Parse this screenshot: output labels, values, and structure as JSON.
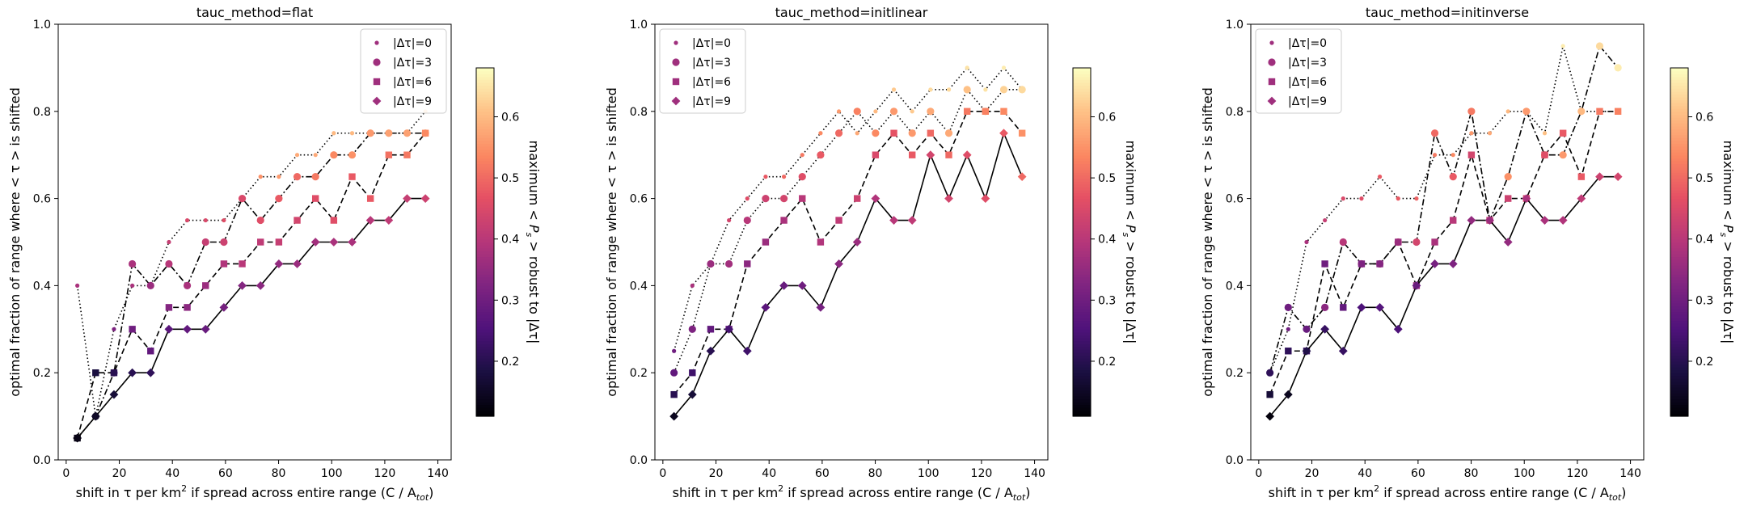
{
  "chart_data": [
    {
      "type": "scatter",
      "title": "tauc_method=flat",
      "ylabel": "optimal fraction of range where < τ > is shifted",
      "xlabel_parts": [
        "shift in τ per km",
        "2",
        " if spread across entire range (C / A",
        "tot",
        ")"
      ],
      "xlim": [
        -3,
        145
      ],
      "ylim": [
        0,
        1.0
      ],
      "xticks": [
        0,
        20,
        40,
        60,
        80,
        100,
        120,
        140
      ],
      "yticks": [
        0.0,
        0.2,
        0.4,
        0.6,
        0.8,
        1.0
      ],
      "legend_position": "upper right",
      "colorbar": {
        "label": "maximum < P_s > robust to |Δτ|",
        "label_parts": [
          "maximum <",
          "P",
          "s",
          "> robust to |Δτ|"
        ],
        "range": [
          0.11,
          0.68
        ],
        "ticks": [
          0.2,
          0.3,
          0.4,
          0.5,
          0.6
        ],
        "colormap": "magma"
      },
      "x": [
        4.2,
        11.1,
        18.0,
        24.9,
        31.8,
        38.7,
        45.6,
        52.5,
        59.4,
        66.3,
        73.2,
        80.1,
        87.0,
        93.9,
        100.8,
        107.7,
        114.6,
        121.5,
        128.4,
        135.3
      ],
      "series": [
        {
          "name": "|Δτ|=0",
          "marker": "point",
          "linestyle": "dotted",
          "y": [
            0.4,
            0.1,
            0.3,
            0.4,
            0.4,
            0.5,
            0.55,
            0.55,
            0.55,
            0.6,
            0.65,
            0.65,
            0.7,
            0.7,
            0.75,
            0.75,
            0.75,
            0.75,
            0.75,
            0.8
          ],
          "c": [
            0.38,
            0.22,
            0.32,
            0.38,
            0.4,
            0.42,
            0.45,
            0.45,
            0.46,
            0.52,
            0.55,
            0.56,
            0.58,
            0.58,
            0.6,
            0.6,
            0.61,
            0.61,
            0.62,
            0.62
          ]
        },
        {
          "name": "|Δτ|=3",
          "marker": "circle",
          "linestyle": "dashdot",
          "y": [
            0.05,
            0.1,
            0.2,
            0.45,
            0.4,
            0.45,
            0.4,
            0.5,
            0.5,
            0.6,
            0.55,
            0.6,
            0.65,
            0.65,
            0.7,
            0.7,
            0.75,
            0.75,
            0.75,
            0.75
          ],
          "c": [
            0.13,
            0.15,
            0.25,
            0.38,
            0.36,
            0.4,
            0.38,
            0.42,
            0.43,
            0.45,
            0.46,
            0.48,
            0.5,
            0.52,
            0.54,
            0.55,
            0.56,
            0.57,
            0.57,
            0.58
          ]
        },
        {
          "name": "|Δτ|=6",
          "marker": "square",
          "linestyle": "dashed",
          "y": [
            0.05,
            0.2,
            0.2,
            0.3,
            0.25,
            0.35,
            0.35,
            0.4,
            0.45,
            0.45,
            0.5,
            0.5,
            0.55,
            0.6,
            0.55,
            0.65,
            0.6,
            0.7,
            0.7,
            0.75
          ],
          "c": [
            0.13,
            0.18,
            0.2,
            0.3,
            0.28,
            0.33,
            0.34,
            0.36,
            0.39,
            0.4,
            0.41,
            0.42,
            0.44,
            0.46,
            0.46,
            0.48,
            0.48,
            0.51,
            0.52,
            0.54
          ]
        },
        {
          "name": "|Δτ|=9",
          "marker": "diamond",
          "linestyle": "solid",
          "y": [
            0.05,
            0.1,
            0.15,
            0.2,
            0.2,
            0.3,
            0.3,
            0.3,
            0.35,
            0.4,
            0.4,
            0.45,
            0.45,
            0.5,
            0.5,
            0.5,
            0.55,
            0.55,
            0.6,
            0.6
          ],
          "c": [
            0.13,
            0.15,
            0.17,
            0.2,
            0.21,
            0.27,
            0.28,
            0.29,
            0.31,
            0.33,
            0.34,
            0.35,
            0.36,
            0.37,
            0.38,
            0.38,
            0.4,
            0.41,
            0.42,
            0.43
          ]
        }
      ]
    },
    {
      "type": "scatter",
      "title": "tauc_method=initlinear",
      "ylabel": "optimal fraction of range where < τ > is shifted",
      "xlabel_parts": [
        "shift in τ per km",
        "2",
        " if spread across entire range (C / A",
        "tot",
        ")"
      ],
      "xlim": [
        -3,
        145
      ],
      "ylim": [
        0,
        1.0
      ],
      "xticks": [
        0,
        20,
        40,
        60,
        80,
        100,
        120,
        140
      ],
      "yticks": [
        0.0,
        0.2,
        0.4,
        0.6,
        0.8,
        1.0
      ],
      "legend_position": "upper left",
      "colorbar": {
        "label": "maximum < P_s > robust to |Δτ|",
        "label_parts": [
          "maximum <",
          "P",
          "s",
          "> robust to |Δτ|"
        ],
        "range": [
          0.11,
          0.68
        ],
        "ticks": [
          0.2,
          0.3,
          0.4,
          0.5,
          0.6
        ],
        "colormap": "magma"
      },
      "x": [
        4.2,
        11.1,
        18.0,
        24.9,
        31.8,
        38.7,
        45.6,
        52.5,
        59.4,
        66.3,
        73.2,
        80.1,
        87.0,
        93.9,
        100.8,
        107.7,
        114.6,
        121.5,
        128.4,
        135.3
      ],
      "series": [
        {
          "name": "|Δτ|=0",
          "marker": "point",
          "linestyle": "dotted",
          "y": [
            0.25,
            0.4,
            0.45,
            0.55,
            0.6,
            0.65,
            0.65,
            0.7,
            0.75,
            0.8,
            0.75,
            0.8,
            0.85,
            0.8,
            0.85,
            0.85,
            0.9,
            0.85,
            0.9,
            0.85
          ],
          "c": [
            0.3,
            0.38,
            0.4,
            0.44,
            0.46,
            0.48,
            0.5,
            0.52,
            0.54,
            0.56,
            0.58,
            0.6,
            0.62,
            0.62,
            0.64,
            0.64,
            0.65,
            0.65,
            0.66,
            0.66
          ]
        },
        {
          "name": "|Δτ|=3",
          "marker": "circle",
          "linestyle": "dotted",
          "y": [
            0.2,
            0.3,
            0.45,
            0.45,
            0.55,
            0.6,
            0.6,
            0.65,
            0.7,
            0.75,
            0.8,
            0.75,
            0.8,
            0.75,
            0.8,
            0.75,
            0.85,
            0.8,
            0.85,
            0.85
          ],
          "c": [
            0.28,
            0.32,
            0.36,
            0.37,
            0.4,
            0.43,
            0.44,
            0.46,
            0.48,
            0.5,
            0.53,
            0.54,
            0.56,
            0.56,
            0.58,
            0.58,
            0.61,
            0.61,
            0.63,
            0.64
          ]
        },
        {
          "name": "|Δτ|=6",
          "marker": "square",
          "linestyle": "dashed",
          "y": [
            0.15,
            0.2,
            0.3,
            0.3,
            0.45,
            0.5,
            0.55,
            0.6,
            0.5,
            0.55,
            0.6,
            0.7,
            0.75,
            0.7,
            0.75,
            0.7,
            0.8,
            0.8,
            0.8,
            0.75
          ],
          "c": [
            0.2,
            0.23,
            0.28,
            0.29,
            0.34,
            0.36,
            0.38,
            0.4,
            0.39,
            0.41,
            0.43,
            0.45,
            0.47,
            0.48,
            0.5,
            0.5,
            0.52,
            0.53,
            0.54,
            0.55
          ]
        },
        {
          "name": "|Δτ|=9",
          "marker": "diamond",
          "linestyle": "solid",
          "y": [
            0.1,
            0.15,
            0.25,
            0.3,
            0.25,
            0.35,
            0.4,
            0.4,
            0.35,
            0.45,
            0.5,
            0.6,
            0.55,
            0.55,
            0.7,
            0.6,
            0.7,
            0.6,
            0.75,
            0.65
          ],
          "c": [
            0.14,
            0.17,
            0.2,
            0.24,
            0.23,
            0.27,
            0.29,
            0.3,
            0.31,
            0.34,
            0.36,
            0.39,
            0.4,
            0.41,
            0.44,
            0.44,
            0.46,
            0.46,
            0.48,
            0.5
          ]
        }
      ]
    },
    {
      "type": "scatter",
      "title": "tauc_method=initinverse",
      "ylabel": "optimal fraction of range where < τ > is shifted",
      "xlabel_parts": [
        "shift in τ per km",
        "2",
        " if spread across entire range (C / A",
        "tot",
        ")"
      ],
      "xlim": [
        -3,
        145
      ],
      "ylim": [
        0,
        1.0
      ],
      "xticks": [
        0,
        20,
        40,
        60,
        80,
        100,
        120,
        140
      ],
      "yticks": [
        0.0,
        0.2,
        0.4,
        0.6,
        0.8,
        1.0
      ],
      "legend_position": "upper left",
      "colorbar": {
        "label": "maximum < P_s > robust to |Δτ|",
        "label_parts": [
          "maximum <",
          "P",
          "s",
          "> robust to |Δτ|"
        ],
        "range": [
          0.11,
          0.68
        ],
        "ticks": [
          0.2,
          0.3,
          0.4,
          0.5,
          0.6
        ],
        "colormap": "magma"
      },
      "x": [
        4.2,
        11.1,
        18.0,
        24.9,
        31.8,
        38.7,
        45.6,
        52.5,
        59.4,
        66.3,
        73.2,
        80.1,
        87.0,
        93.9,
        100.8,
        107.7,
        114.6,
        121.5,
        128.4,
        135.3
      ],
      "series": [
        {
          "name": "|Δτ|=0",
          "marker": "point",
          "linestyle": "dotted",
          "y": [
            0.2,
            0.3,
            0.5,
            0.55,
            0.6,
            0.6,
            0.65,
            0.6,
            0.6,
            0.7,
            0.7,
            0.75,
            0.75,
            0.8,
            0.8,
            0.75,
            0.95,
            0.8,
            0.8,
            0.8
          ],
          "c": [
            0.22,
            0.3,
            0.38,
            0.42,
            0.45,
            0.46,
            0.48,
            0.48,
            0.49,
            0.52,
            0.54,
            0.56,
            0.58,
            0.6,
            0.61,
            0.61,
            0.66,
            0.63,
            0.64,
            0.64
          ]
        },
        {
          "name": "|Δτ|=3",
          "marker": "circle",
          "linestyle": "dashdot",
          "y": [
            0.2,
            0.35,
            0.3,
            0.35,
            0.5,
            0.45,
            0.45,
            0.5,
            0.5,
            0.75,
            0.65,
            0.8,
            0.55,
            0.65,
            0.8,
            0.7,
            0.7,
            0.8,
            0.95,
            0.9
          ],
          "c": [
            0.21,
            0.3,
            0.29,
            0.34,
            0.4,
            0.39,
            0.4,
            0.43,
            0.44,
            0.5,
            0.48,
            0.52,
            0.46,
            0.55,
            0.56,
            0.52,
            0.56,
            0.6,
            0.64,
            0.66
          ]
        },
        {
          "name": "|Δτ|=6",
          "marker": "square",
          "linestyle": "dashed",
          "y": [
            0.15,
            0.25,
            0.25,
            0.45,
            0.35,
            0.45,
            0.45,
            0.5,
            0.4,
            0.5,
            0.55,
            0.7,
            0.55,
            0.6,
            0.6,
            0.7,
            0.75,
            0.65,
            0.8,
            0.8
          ],
          "c": [
            0.17,
            0.21,
            0.22,
            0.3,
            0.28,
            0.32,
            0.33,
            0.36,
            0.35,
            0.38,
            0.4,
            0.44,
            0.41,
            0.43,
            0.44,
            0.46,
            0.48,
            0.48,
            0.52,
            0.53
          ]
        },
        {
          "name": "|Δτ|=9",
          "marker": "diamond",
          "linestyle": "solid",
          "y": [
            0.1,
            0.15,
            0.25,
            0.3,
            0.25,
            0.35,
            0.35,
            0.3,
            0.4,
            0.45,
            0.45,
            0.55,
            0.55,
            0.5,
            0.6,
            0.55,
            0.55,
            0.6,
            0.65,
            0.65
          ],
          "c": [
            0.12,
            0.14,
            0.19,
            0.22,
            0.22,
            0.25,
            0.26,
            0.25,
            0.29,
            0.31,
            0.32,
            0.35,
            0.36,
            0.35,
            0.38,
            0.38,
            0.39,
            0.41,
            0.43,
            0.44
          ]
        }
      ]
    }
  ]
}
